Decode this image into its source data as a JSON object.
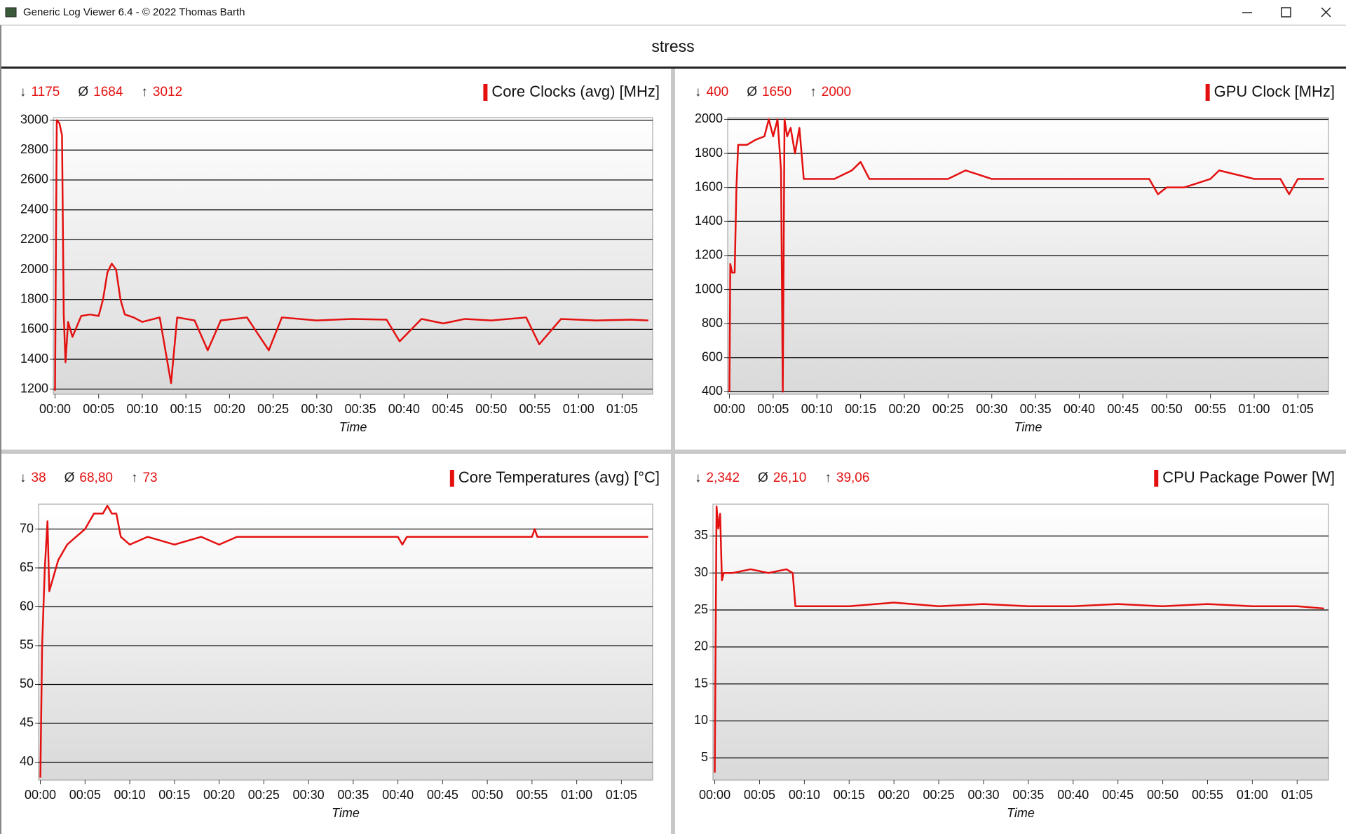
{
  "window": {
    "title": "Generic Log Viewer 6.4 - © 2022 Thomas Barth"
  },
  "header": {
    "title": "stress"
  },
  "chart_data": [
    {
      "type": "line",
      "xlabel": "Time",
      "grid": true,
      "stats": [
        {
          "symbol": "↓",
          "value": 1175
        },
        {
          "symbol": "Ø",
          "value": 1684
        },
        {
          "symbol": "↑",
          "value": 3012
        }
      ],
      "x": [
        0,
        0.2,
        0.5,
        0.8,
        1,
        1.2,
        1.5,
        2,
        3,
        4,
        5,
        5.5,
        6,
        6.5,
        7,
        7.5,
        8,
        9,
        10,
        12,
        13.3,
        14,
        16,
        17.5,
        19,
        22,
        24.5,
        26,
        30,
        34,
        38,
        39.5,
        42,
        44.5,
        47,
        50,
        54,
        55.5,
        58,
        62,
        66,
        68
      ],
      "series": [
        {
          "name": "Core Clocks (avg) [MHz]",
          "color": "#e41010",
          "values": [
            1190,
            3000,
            2980,
            2900,
            1700,
            1380,
            1650,
            1550,
            1690,
            1700,
            1690,
            1800,
            1980,
            2040,
            2000,
            1800,
            1700,
            1680,
            1650,
            1680,
            1240,
            1680,
            1660,
            1460,
            1660,
            1680,
            1460,
            1680,
            1660,
            1670,
            1665,
            1520,
            1670,
            1640,
            1670,
            1660,
            1680,
            1500,
            1670,
            1660,
            1665,
            1660
          ]
        }
      ],
      "xlim": [
        -0.2,
        68.5
      ],
      "ylim": [
        1166,
        3017
      ],
      "xticks": [
        {
          "value": 0,
          "label": "00:00"
        },
        {
          "value": 5,
          "label": "00:05"
        },
        {
          "value": 10,
          "label": "00:10"
        },
        {
          "value": 15,
          "label": "00:15"
        },
        {
          "value": 20,
          "label": "00:20"
        },
        {
          "value": 25,
          "label": "00:25"
        },
        {
          "value": 30,
          "label": "00:30"
        },
        {
          "value": 35,
          "label": "00:35"
        },
        {
          "value": 40,
          "label": "00:40"
        },
        {
          "value": 45,
          "label": "00:45"
        },
        {
          "value": 50,
          "label": "00:50"
        },
        {
          "value": 55,
          "label": "00:55"
        },
        {
          "value": 60,
          "label": "01:00"
        },
        {
          "value": 65,
          "label": "01:05"
        }
      ],
      "yticks": [
        1200,
        1400,
        1600,
        1800,
        2000,
        2200,
        2400,
        2600,
        2800,
        3000
      ]
    },
    {
      "type": "line",
      "xlabel": "Time",
      "grid": true,
      "stats": [
        {
          "symbol": "↓",
          "value": 400
        },
        {
          "symbol": "Ø",
          "value": 1650
        },
        {
          "symbol": "↑",
          "value": 2000
        }
      ],
      "x": [
        0,
        0.1,
        0.3,
        0.6,
        0.8,
        1,
        1.5,
        2,
        3,
        4,
        4.5,
        5,
        5.5,
        5.9,
        6.1,
        6.3,
        6.6,
        7,
        7.5,
        8,
        8.5,
        9,
        12,
        14,
        15,
        16,
        18,
        20,
        25,
        27,
        30,
        35,
        40,
        45,
        48,
        49,
        50,
        52,
        55,
        56,
        60,
        63,
        64,
        65,
        68
      ],
      "series": [
        {
          "name": "GPU Clock [MHz]",
          "color": "#e41010",
          "values": [
            400,
            1150,
            1100,
            1100,
            1600,
            1850,
            1850,
            1850,
            1880,
            1900,
            2000,
            1900,
            2000,
            1700,
            400,
            2000,
            1900,
            1950,
            1800,
            1950,
            1650,
            1650,
            1650,
            1700,
            1750,
            1650,
            1650,
            1650,
            1650,
            1700,
            1650,
            1650,
            1650,
            1650,
            1650,
            1560,
            1600,
            1600,
            1650,
            1700,
            1650,
            1650,
            1560,
            1650,
            1650
          ]
        }
      ],
      "xlim": [
        -0.2,
        68.5
      ],
      "ylim": [
        385,
        2010
      ],
      "xticks": [
        {
          "value": 0,
          "label": "00:00"
        },
        {
          "value": 5,
          "label": "00:05"
        },
        {
          "value": 10,
          "label": "00:10"
        },
        {
          "value": 15,
          "label": "00:15"
        },
        {
          "value": 20,
          "label": "00:20"
        },
        {
          "value": 25,
          "label": "00:25"
        },
        {
          "value": 30,
          "label": "00:30"
        },
        {
          "value": 35,
          "label": "00:35"
        },
        {
          "value": 40,
          "label": "00:40"
        },
        {
          "value": 45,
          "label": "00:45"
        },
        {
          "value": 50,
          "label": "00:50"
        },
        {
          "value": 55,
          "label": "00:55"
        },
        {
          "value": 60,
          "label": "01:00"
        },
        {
          "value": 65,
          "label": "01:05"
        }
      ],
      "yticks": [
        400,
        600,
        800,
        1000,
        1200,
        1400,
        1600,
        1800,
        2000
      ]
    },
    {
      "type": "line",
      "xlabel": "Time",
      "grid": true,
      "stats": [
        {
          "symbol": "↓",
          "value": 38
        },
        {
          "symbol": "Ø",
          "value": 68.8,
          "label": "68,80"
        },
        {
          "symbol": "↑",
          "value": 73
        }
      ],
      "x": [
        0,
        0.2,
        0.5,
        0.8,
        1,
        1.5,
        2,
        3,
        4,
        5,
        6,
        7,
        7.5,
        8,
        8.5,
        9,
        10,
        12,
        15,
        18,
        20,
        22,
        25,
        30,
        40,
        40.5,
        41,
        50,
        55,
        55.3,
        55.6,
        60,
        68
      ],
      "series": [
        {
          "name": "Core Temperatures (avg) [°C]",
          "color": "#e41010",
          "values": [
            38,
            55,
            65,
            71,
            62,
            64,
            66,
            68,
            69,
            70,
            72,
            72,
            73,
            72,
            72,
            69,
            68,
            69,
            68,
            69,
            68,
            69,
            69,
            69,
            69,
            68,
            69,
            69,
            69,
            70,
            69,
            69,
            69
          ]
        }
      ],
      "xlim": [
        -0.2,
        68.5
      ],
      "ylim": [
        37.7,
        73.2
      ],
      "xticks": [
        {
          "value": 0,
          "label": "00:00"
        },
        {
          "value": 5,
          "label": "00:05"
        },
        {
          "value": 10,
          "label": "00:10"
        },
        {
          "value": 15,
          "label": "00:15"
        },
        {
          "value": 20,
          "label": "00:20"
        },
        {
          "value": 25,
          "label": "00:25"
        },
        {
          "value": 30,
          "label": "00:30"
        },
        {
          "value": 35,
          "label": "00:35"
        },
        {
          "value": 40,
          "label": "00:40"
        },
        {
          "value": 45,
          "label": "00:45"
        },
        {
          "value": 50,
          "label": "00:50"
        },
        {
          "value": 55,
          "label": "00:55"
        },
        {
          "value": 60,
          "label": "01:00"
        },
        {
          "value": 65,
          "label": "01:05"
        }
      ],
      "yticks": [
        40,
        45,
        50,
        55,
        60,
        65,
        70
      ]
    },
    {
      "type": "line",
      "xlabel": "Time",
      "grid": true,
      "stats": [
        {
          "symbol": "↓",
          "value": 2.342,
          "label": "2,342"
        },
        {
          "symbol": "Ø",
          "value": 26.1,
          "label": "26,10"
        },
        {
          "symbol": "↑",
          "value": 39.06,
          "label": "39,06"
        }
      ],
      "x": [
        0,
        0.2,
        0.4,
        0.6,
        0.8,
        1,
        2,
        4,
        6,
        8,
        8.7,
        9,
        10,
        15,
        20,
        25,
        30,
        35,
        40,
        45,
        50,
        55,
        60,
        65,
        68
      ],
      "series": [
        {
          "name": "CPU Package Power [W]",
          "color": "#e41010",
          "values": [
            3,
            39,
            36,
            38,
            29,
            30,
            30,
            30.5,
            30,
            30.5,
            30,
            25.5,
            25.5,
            25.5,
            26,
            25.5,
            25.8,
            25.5,
            25.5,
            25.8,
            25.5,
            25.8,
            25.5,
            25.5,
            25.2
          ]
        }
      ],
      "xlim": [
        -0.2,
        68.5
      ],
      "ylim": [
        2,
        39.3
      ],
      "xticks": [
        {
          "value": 0,
          "label": "00:00"
        },
        {
          "value": 5,
          "label": "00:05"
        },
        {
          "value": 10,
          "label": "00:10"
        },
        {
          "value": 15,
          "label": "00:15"
        },
        {
          "value": 20,
          "label": "00:20"
        },
        {
          "value": 25,
          "label": "00:25"
        },
        {
          "value": 30,
          "label": "00:30"
        },
        {
          "value": 35,
          "label": "00:35"
        },
        {
          "value": 40,
          "label": "00:40"
        },
        {
          "value": 45,
          "label": "00:45"
        },
        {
          "value": 50,
          "label": "00:50"
        },
        {
          "value": 55,
          "label": "00:55"
        },
        {
          "value": 60,
          "label": "01:00"
        },
        {
          "value": 65,
          "label": "01:05"
        }
      ],
      "yticks": [
        5,
        10,
        15,
        20,
        25,
        30,
        35
      ]
    }
  ]
}
